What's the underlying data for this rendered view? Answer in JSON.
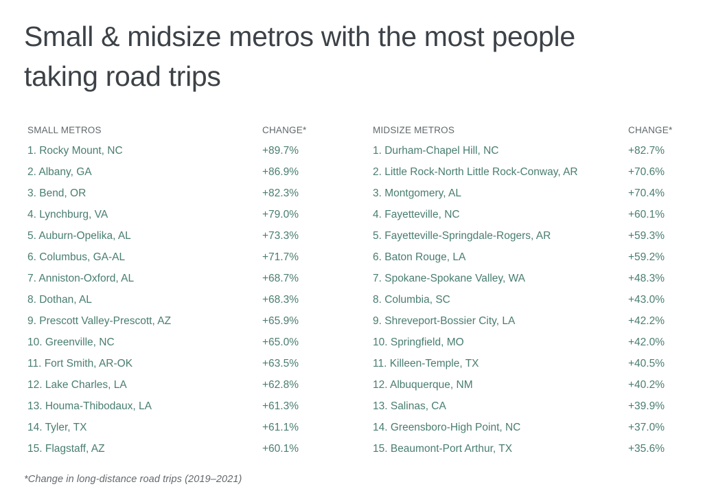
{
  "page": {
    "title_lines": [
      "Small & midsize metros with the most people",
      "taking road trips"
    ],
    "footnote": "*Change in long-distance road trips (2019–2021)"
  },
  "colors": {
    "bg": "#ffffff",
    "title_text": "#3c4247",
    "header_text": "#5f686b",
    "metro_text": "#497d70",
    "footnote_text": "#63696d"
  },
  "chart_data": {
    "type": "table",
    "title": "Small & midsize metros with the most people taking road trips",
    "footnote": "*Change in long-distance road trips (2019–2021)",
    "value_unit": "percent change in long-distance road trips, 2019-2021",
    "tables": [
      {
        "header_metros": "SMALL METROS",
        "header_change": "CHANGE*",
        "rows": [
          {
            "rank": 1,
            "metro": "Rocky Mount, NC",
            "change": "+89.7%",
            "change_pct": 89.7
          },
          {
            "rank": 2,
            "metro": "Albany, GA",
            "change": "+86.9%",
            "change_pct": 86.9
          },
          {
            "rank": 3,
            "metro": "Bend, OR",
            "change": "+82.3%",
            "change_pct": 82.3
          },
          {
            "rank": 4,
            "metro": "Lynchburg, VA",
            "change": "+79.0%",
            "change_pct": 79.0
          },
          {
            "rank": 5,
            "metro": "Auburn-Opelika, AL",
            "change": "+73.3%",
            "change_pct": 73.3
          },
          {
            "rank": 6,
            "metro": "Columbus, GA-AL",
            "change": "+71.7%",
            "change_pct": 71.7
          },
          {
            "rank": 7,
            "metro": "Anniston-Oxford, AL",
            "change": "+68.7%",
            "change_pct": 68.7
          },
          {
            "rank": 8,
            "metro": "Dothan, AL",
            "change": "+68.3%",
            "change_pct": 68.3
          },
          {
            "rank": 9,
            "metro": "Prescott Valley-Prescott, AZ",
            "change": "+65.9%",
            "change_pct": 65.9
          },
          {
            "rank": 10,
            "metro": "Greenville, NC",
            "change": "+65.0%",
            "change_pct": 65.0
          },
          {
            "rank": 11,
            "metro": "Fort Smith, AR-OK",
            "change": "+63.5%",
            "change_pct": 63.5
          },
          {
            "rank": 12,
            "metro": "Lake Charles, LA",
            "change": "+62.8%",
            "change_pct": 62.8
          },
          {
            "rank": 13,
            "metro": "Houma-Thibodaux, LA",
            "change": "+61.3%",
            "change_pct": 61.3
          },
          {
            "rank": 14,
            "metro": "Tyler, TX",
            "change": "+61.1%",
            "change_pct": 61.1
          },
          {
            "rank": 15,
            "metro": "Flagstaff, AZ",
            "change": "+60.1%",
            "change_pct": 60.1
          }
        ]
      },
      {
        "header_metros": "MIDSIZE METROS",
        "header_change": "CHANGE*",
        "rows": [
          {
            "rank": 1,
            "metro": "Durham-Chapel Hill, NC",
            "change": "+82.7%",
            "change_pct": 82.7
          },
          {
            "rank": 2,
            "metro": "Little Rock-North Little Rock-Conway, AR",
            "change": "+70.6%",
            "change_pct": 70.6
          },
          {
            "rank": 3,
            "metro": "Montgomery, AL",
            "change": "+70.4%",
            "change_pct": 70.4
          },
          {
            "rank": 4,
            "metro": "Fayetteville, NC",
            "change": "+60.1%",
            "change_pct": 60.1
          },
          {
            "rank": 5,
            "metro": "Fayetteville-Springdale-Rogers, AR",
            "change": "+59.3%",
            "change_pct": 59.3
          },
          {
            "rank": 6,
            "metro": "Baton Rouge, LA",
            "change": "+59.2%",
            "change_pct": 59.2
          },
          {
            "rank": 7,
            "metro": "Spokane-Spokane Valley, WA",
            "change": "+48.3%",
            "change_pct": 48.3
          },
          {
            "rank": 8,
            "metro": "Columbia, SC",
            "change": "+43.0%",
            "change_pct": 43.0
          },
          {
            "rank": 9,
            "metro": "Shreveport-Bossier City, LA",
            "change": "+42.2%",
            "change_pct": 42.2
          },
          {
            "rank": 10,
            "metro": "Springfield, MO",
            "change": "+42.0%",
            "change_pct": 42.0
          },
          {
            "rank": 11,
            "metro": "Killeen-Temple, TX",
            "change": "+40.5%",
            "change_pct": 40.5
          },
          {
            "rank": 12,
            "metro": "Albuquerque, NM",
            "change": "+40.2%",
            "change_pct": 40.2
          },
          {
            "rank": 13,
            "metro": "Salinas, CA",
            "change": "+39.9%",
            "change_pct": 39.9
          },
          {
            "rank": 14,
            "metro": "Greensboro-High Point, NC",
            "change": "+37.0%",
            "change_pct": 37.0
          },
          {
            "rank": 15,
            "metro": "Beaumont-Port Arthur, TX",
            "change": "+35.6%",
            "change_pct": 35.6
          }
        ]
      }
    ]
  }
}
